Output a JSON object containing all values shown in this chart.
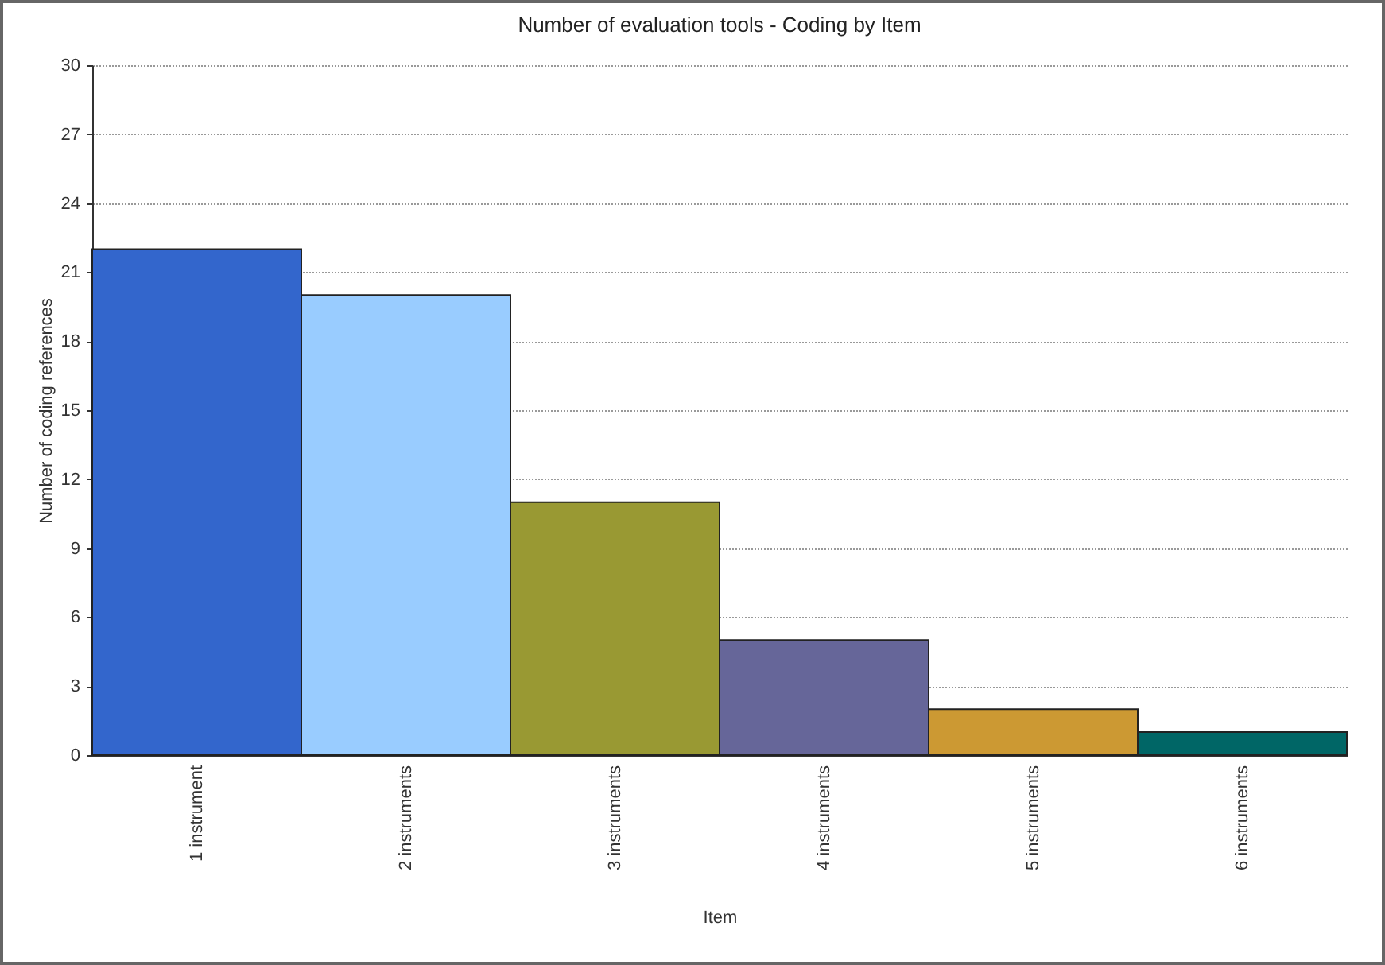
{
  "chart_data": {
    "type": "bar",
    "title": "Number of evaluation tools - Coding by Item",
    "xlabel": "Item",
    "ylabel": "Number of coding references",
    "categories": [
      "1 instrument",
      "2 instruments",
      "3 instruments",
      "4 instruments",
      "5 instruments",
      "6 instruments"
    ],
    "values": [
      22,
      20,
      11,
      5,
      2,
      1
    ],
    "colors": [
      "#3366cc",
      "#99ccff",
      "#999933",
      "#666699",
      "#cc9933",
      "#006666"
    ],
    "ylim": [
      0,
      30
    ],
    "yticks": [
      0,
      3,
      6,
      9,
      12,
      15,
      18,
      21,
      24,
      27,
      30
    ],
    "grid": "y",
    "legend": false
  }
}
